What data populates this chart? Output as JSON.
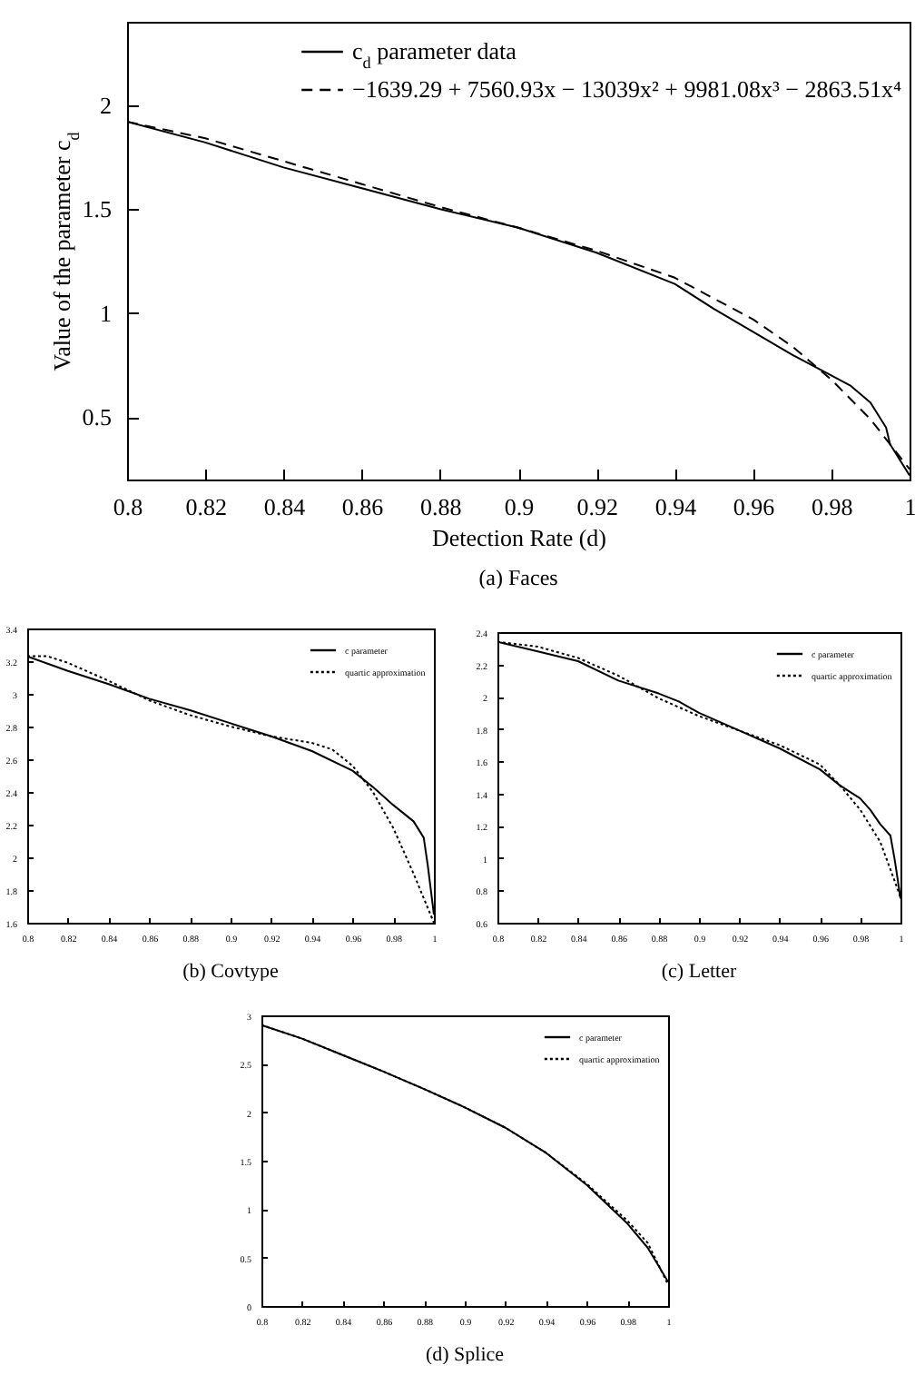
{
  "chart_data": [
    {
      "type": "line",
      "title": "(a)  Faces",
      "xlabel": "Detection Rate (d)",
      "ylabel": "Value of the parameter c$_{d}$",
      "xlim": [
        0.8,
        1
      ],
      "ylim": [
        0.2,
        2.4
      ],
      "xticks": [
        0.8,
        0.82,
        0.84,
        0.86,
        0.88,
        0.9,
        0.92,
        0.94,
        0.96,
        0.98,
        1
      ],
      "yticks": [
        0.5,
        1,
        1.5,
        2
      ],
      "legend": "top right",
      "series": [
        {
          "name": "c$_{d}$ parameter data",
          "color": "#000000",
          "line_style": "solid",
          "x": [
            0.8,
            0.82,
            0.84,
            0.86,
            0.88,
            0.9,
            0.92,
            0.94,
            0.95,
            0.96,
            0.97,
            0.98,
            0.985,
            0.99,
            0.994,
            0.995,
            1.0
          ],
          "values": [
            1.92,
            1.82,
            1.7,
            1.6,
            1.5,
            1.41,
            1.29,
            1.14,
            1.02,
            0.91,
            0.8,
            0.7,
            0.65,
            0.57,
            0.45,
            0.37,
            0.22
          ]
        },
        {
          "name": "−1639.29 + 7560.93x − 13039x² + 9981.08x³ − 2863.51x⁴",
          "color": "#000000",
          "line_style": "dashed",
          "x": [
            0.8,
            0.82,
            0.84,
            0.86,
            0.88,
            0.9,
            0.92,
            0.94,
            0.96,
            0.97,
            0.98,
            0.99,
            1.0
          ],
          "values": [
            1.92,
            1.84,
            1.73,
            1.62,
            1.51,
            1.41,
            1.3,
            1.17,
            0.97,
            0.84,
            0.68,
            0.49,
            0.25
          ]
        }
      ]
    },
    {
      "type": "line",
      "title": "(b)  Covtype",
      "xlim": [
        0.8,
        1
      ],
      "ylim": [
        1.6,
        3.4
      ],
      "xticks": [
        0.8,
        0.82,
        0.84,
        0.86,
        0.88,
        0.9,
        0.92,
        0.94,
        0.96,
        0.98,
        1
      ],
      "yticks": [
        1.6,
        1.8,
        2,
        2.2,
        2.4,
        2.6,
        2.8,
        3,
        3.2,
        3.4
      ],
      "legend": "top right",
      "series": [
        {
          "name": "c parameter",
          "color": "#000000",
          "line_style": "solid",
          "x": [
            0.8,
            0.82,
            0.84,
            0.86,
            0.88,
            0.9,
            0.92,
            0.94,
            0.96,
            0.97,
            0.98,
            0.99,
            0.995,
            0.997,
            1.0
          ],
          "values": [
            3.23,
            3.14,
            3.06,
            2.97,
            2.9,
            2.82,
            2.74,
            2.65,
            2.53,
            2.43,
            2.32,
            2.22,
            2.12,
            1.95,
            1.65
          ]
        },
        {
          "name": "quartic approximation",
          "color": "#000000",
          "line_style": "dotted",
          "x": [
            0.8,
            0.81,
            0.82,
            0.84,
            0.86,
            0.88,
            0.9,
            0.92,
            0.94,
            0.95,
            0.96,
            0.97,
            0.98,
            0.99,
            1.0
          ],
          "values": [
            3.23,
            3.23,
            3.19,
            3.08,
            2.96,
            2.87,
            2.8,
            2.74,
            2.7,
            2.66,
            2.56,
            2.4,
            2.18,
            1.9,
            1.6
          ]
        }
      ]
    },
    {
      "type": "line",
      "title": "(c)  Letter",
      "xlim": [
        0.8,
        1
      ],
      "ylim": [
        0.6,
        2.4
      ],
      "xticks": [
        0.8,
        0.82,
        0.84,
        0.86,
        0.88,
        0.9,
        0.92,
        0.94,
        0.96,
        0.98,
        1
      ],
      "yticks": [
        0.6,
        0.8,
        1,
        1.2,
        1.4,
        1.6,
        1.8,
        2,
        2.2,
        2.4
      ],
      "legend": "top right",
      "series": [
        {
          "name": "c parameter",
          "color": "#000000",
          "line_style": "solid",
          "x": [
            0.8,
            0.82,
            0.84,
            0.86,
            0.88,
            0.89,
            0.9,
            0.92,
            0.94,
            0.96,
            0.97,
            0.98,
            0.985,
            0.99,
            0.995,
            0.997,
            0.998,
            1.0
          ],
          "values": [
            2.34,
            2.28,
            2.22,
            2.1,
            2.02,
            1.97,
            1.9,
            1.79,
            1.68,
            1.55,
            1.45,
            1.37,
            1.3,
            1.21,
            1.14,
            1.0,
            0.92,
            0.75
          ]
        },
        {
          "name": "quartic approximation",
          "color": "#000000",
          "line_style": "dotted",
          "x": [
            0.8,
            0.82,
            0.84,
            0.86,
            0.88,
            0.9,
            0.92,
            0.94,
            0.96,
            0.97,
            0.98,
            0.99,
            1.0
          ],
          "values": [
            2.34,
            2.31,
            2.24,
            2.13,
            1.99,
            1.88,
            1.79,
            1.7,
            1.58,
            1.45,
            1.3,
            1.1,
            0.76
          ]
        }
      ]
    },
    {
      "type": "line",
      "title": "(d)  Splice",
      "xlim": [
        0.8,
        1
      ],
      "ylim": [
        0,
        3
      ],
      "xticks": [
        0.8,
        0.82,
        0.84,
        0.86,
        0.88,
        0.9,
        0.92,
        0.94,
        0.96,
        0.98,
        1
      ],
      "yticks": [
        0,
        0.5,
        1,
        1.5,
        2,
        2.5,
        3
      ],
      "legend": "top right",
      "series": [
        {
          "name": "c parameter",
          "color": "#000000",
          "line_style": "solid",
          "x": [
            0.8,
            0.82,
            0.84,
            0.86,
            0.88,
            0.9,
            0.92,
            0.94,
            0.96,
            0.98,
            0.99,
            1.0
          ],
          "values": [
            2.9,
            2.76,
            2.59,
            2.42,
            2.24,
            2.05,
            1.84,
            1.58,
            1.25,
            0.85,
            0.6,
            0.25
          ]
        },
        {
          "name": "quartic approximation",
          "color": "#000000",
          "line_style": "dotted",
          "x": [
            0.8,
            0.82,
            0.84,
            0.86,
            0.88,
            0.9,
            0.92,
            0.94,
            0.96,
            0.98,
            0.99,
            1.0
          ],
          "values": [
            2.9,
            2.76,
            2.59,
            2.42,
            2.24,
            2.05,
            1.84,
            1.58,
            1.26,
            0.88,
            0.65,
            0.22
          ]
        }
      ]
    }
  ]
}
